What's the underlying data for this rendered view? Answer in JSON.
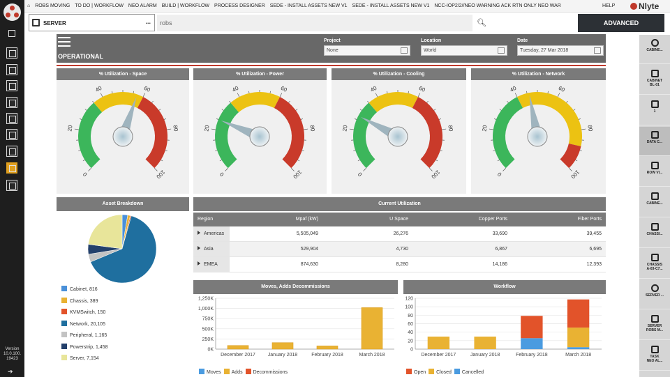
{
  "breadcrumbs": [
    "ROBS MOVING",
    "TO DO | WORKFLOW",
    "NEO ALARM",
    "BUILD | WORKFLOW",
    "PROCESS DESIGNER",
    "SEDE - INSTALL ASSETS NEW V1",
    "SEDE - INSTALL ASSETS NEW V1",
    "NCC-IOP2/2//NEO WARNING ACK RTN ONLY NEO WAR"
  ],
  "help_label": "HELP",
  "brand": "Nlyte",
  "version": {
    "label": "Version",
    "number": "10.0.100.",
    "build": "19423"
  },
  "scope": {
    "label": "SERVER",
    "more": "..."
  },
  "search": {
    "value": "robs"
  },
  "advanced_label": "ADVANCED",
  "view_title": "OPERATIONAL",
  "filters": [
    {
      "label": "Project",
      "value": "None"
    },
    {
      "label": "Location",
      "value": "World"
    },
    {
      "label": "Date",
      "value": "Tuesday, 27 Mar 2018"
    }
  ],
  "right_rail": [
    {
      "label": "CABINE...",
      "icon": "search-icon"
    },
    {
      "label": "CABINET\nBL-01",
      "icon": "cabinet-icon"
    },
    {
      "label": "1",
      "icon": "edit-icon"
    },
    {
      "label": "DATA C...",
      "icon": "edit-icon",
      "selected": true
    },
    {
      "label": "ROW VI...",
      "icon": "row-icon"
    },
    {
      "label": "CABINE...",
      "icon": "cabinet-icon"
    },
    {
      "label": "CHASSI...",
      "icon": "chassis-icon"
    },
    {
      "label": "CHASSIS\nA-03-C7...",
      "icon": "chassis-icon"
    },
    {
      "label": "SERVER ...",
      "icon": "search-icon"
    },
    {
      "label": "SERVER\nROBS M...",
      "icon": "server-icon"
    },
    {
      "label": "TASK\nNEO AL...",
      "icon": "task-icon"
    }
  ],
  "gauges": [
    {
      "title": "% Utilization - Space",
      "value": 57
    },
    {
      "title": "% Utilization - Power",
      "value": 25
    },
    {
      "title": "% Utilization - Cooling",
      "value": 27
    },
    {
      "title": "% Utilization - Network",
      "value": 46
    }
  ],
  "gauge_ticks": [
    "0",
    "20",
    "40",
    "60",
    "80",
    "100"
  ],
  "gauge_colors": {
    "green": "#3cb65b",
    "yellow": "#ecc212",
    "red": "#c93a2a"
  },
  "asset_title": "Asset Breakdown",
  "asset_items": [
    {
      "label": "Cabinet, 816",
      "value": 816,
      "color": "#4a90d9"
    },
    {
      "label": "Chassis, 389",
      "value": 389,
      "color": "#e9b233"
    },
    {
      "label": "KVMSwitch, 150",
      "value": 150,
      "color": "#e2532a"
    },
    {
      "label": "Network, 20,105",
      "value": 20105,
      "color": "#1f6f9f"
    },
    {
      "label": "Peripheral, 1,165",
      "value": 1165,
      "color": "#c3c3c3"
    },
    {
      "label": "Powerstrip, 1,458",
      "value": 1458,
      "color": "#23406b"
    },
    {
      "label": "Server, 7,154",
      "value": 7154,
      "color": "#e8e59a"
    }
  ],
  "util_title": "Current Utilization",
  "util_columns": [
    "Region",
    "Mpaf (kW)",
    "U Space",
    "Copper Ports",
    "Fiber Ports"
  ],
  "util_rows": [
    [
      "Americas",
      "5,505,049",
      "26,276",
      "33,690",
      "39,455"
    ],
    [
      "Asia",
      "529,904",
      "4,730",
      "6,867",
      "6,695"
    ],
    [
      "EMEA",
      "874,630",
      "8,280",
      "14,186",
      "12,393"
    ]
  ],
  "chart_data": [
    {
      "type": "bar",
      "title": "Moves, Adds Decommissions",
      "categories": [
        "December 2017",
        "January 2018",
        "February 2018",
        "March 2018"
      ],
      "series": [
        {
          "name": "Moves",
          "values": [
            0,
            0,
            0,
            0
          ],
          "color": "#4a9be0"
        },
        {
          "name": "Adds",
          "values": [
            90,
            160,
            80,
            1020
          ],
          "color": "#e9b233"
        },
        {
          "name": "Decommissions",
          "values": [
            0,
            0,
            0,
            0
          ],
          "color": "#e2532a"
        }
      ],
      "yticks": [
        "0K",
        "250K",
        "500K",
        "750K",
        "1,000K",
        "1,250K"
      ],
      "ylim": [
        0,
        1250
      ],
      "stacked": false
    },
    {
      "type": "bar",
      "title": "Workflow",
      "categories": [
        "December 2017",
        "January 2018",
        "February 2018",
        "March 2018"
      ],
      "series": [
        {
          "name": "Open",
          "values": [
            0,
            0,
            57,
            72
          ],
          "color": "#e2532a"
        },
        {
          "name": "Closed",
          "values": [
            32,
            32,
            0,
            50
          ],
          "color": "#e9b233"
        },
        {
          "name": "Cancelled",
          "values": [
            0,
            0,
            28,
            5
          ],
          "color": "#4a9be0"
        }
      ],
      "yticks": [
        "0",
        "20",
        "40",
        "60",
        "80",
        "100",
        "120"
      ],
      "ylim": [
        0,
        130
      ],
      "stacked": true
    }
  ]
}
